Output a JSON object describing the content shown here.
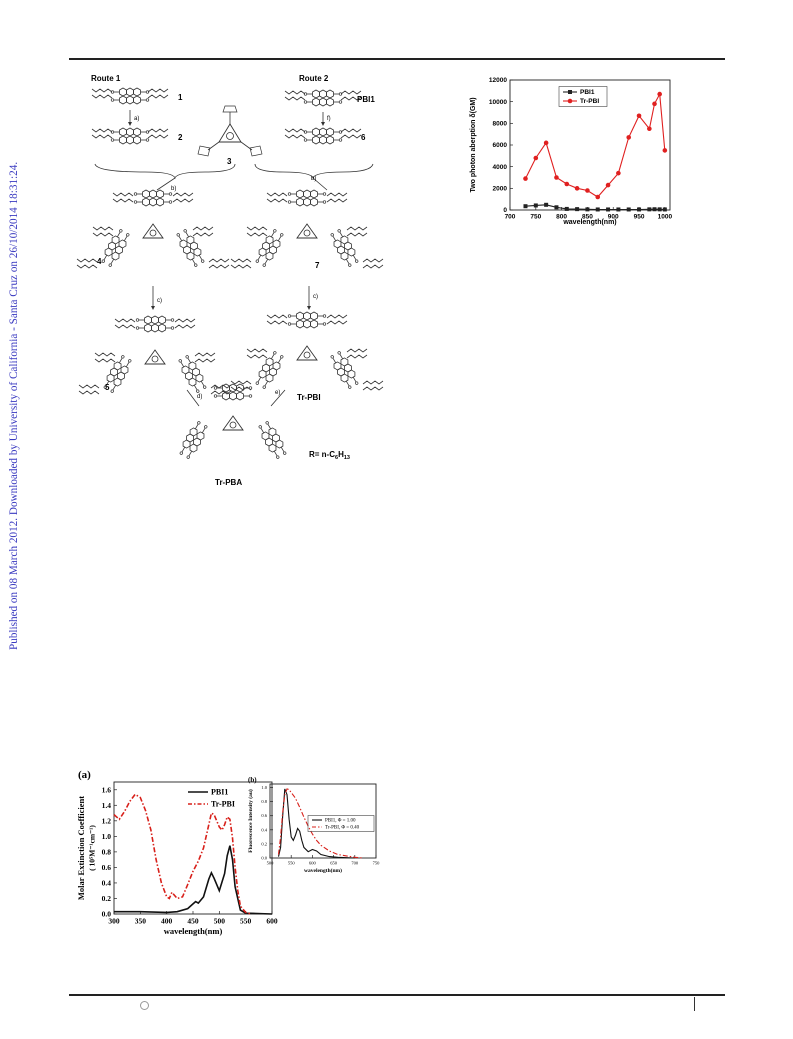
{
  "side_note": "Published on 08 March 2012. Downloaded by University of California - Santa Cruz on 26/10/2014 18:31:24.",
  "scheme": {
    "route1": "Route 1",
    "route2": "Route 2",
    "labels": [
      "1",
      "2",
      "3",
      "4",
      "5",
      "6",
      "7",
      "PBI1",
      "Tr-PBI",
      "Tr-PBA"
    ],
    "steps": [
      "a)",
      "b)",
      "b)",
      "c)",
      "c)",
      "d)",
      "e)",
      "f)"
    ],
    "r_group_prefix": "R= n-C",
    "r_group_sub1": "6",
    "r_group_mid": "H",
    "r_group_sub2": "13"
  },
  "chart_data": [
    {
      "type": "line",
      "xlabel": "wavelength(nm)",
      "ylabel": "Two photon aberption δ(GM)",
      "xlim": [
        700,
        1010
      ],
      "ylim": [
        0,
        12000
      ],
      "xticks": [
        "700",
        "750",
        "800",
        "850",
        "900",
        "950",
        "1000"
      ],
      "yticks": [
        "0",
        "2000",
        "4000",
        "6000",
        "8000",
        "10000",
        "12000"
      ],
      "legend_position": "top-center",
      "series": [
        {
          "name": "PBI1",
          "color": "#222222",
          "marker": "square",
          "x": [
            730,
            750,
            770,
            790,
            810,
            830,
            850,
            870,
            890,
            910,
            930,
            950,
            970,
            980,
            990,
            1000
          ],
          "y": [
            350,
            420,
            480,
            250,
            100,
            80,
            60,
            50,
            50,
            50,
            50,
            50,
            60,
            70,
            60,
            50
          ]
        },
        {
          "name": "Tr-PBI",
          "color": "#e02020",
          "marker": "circle",
          "x": [
            730,
            750,
            770,
            790,
            810,
            830,
            850,
            870,
            890,
            910,
            930,
            950,
            970,
            980,
            990,
            1000
          ],
          "y": [
            2900,
            4800,
            6200,
            3000,
            2400,
            2000,
            1800,
            1200,
            2300,
            3400,
            6700,
            8700,
            7500,
            9800,
            10700,
            5500
          ]
        }
      ]
    },
    {
      "type": "line",
      "panel_label": "(a)",
      "xlabel": "wavelength(nm)",
      "ylabel": "Molar Extinction Coefficient",
      "ylabel2": "( 10⁵M⁻¹cm⁻¹)",
      "xlim": [
        300,
        600
      ],
      "ylim": [
        0,
        1.7
      ],
      "xticks": [
        "300",
        "350",
        "400",
        "450",
        "500",
        "550",
        "600"
      ],
      "yticks": [
        "0.0",
        "0.2",
        "0.4",
        "0.6",
        "0.8",
        "1.0",
        "1.2",
        "1.4",
        "1.6"
      ],
      "legend_position": "top-right",
      "series": [
        {
          "name": "PBI1",
          "color": "#111111",
          "style": "solid",
          "x": [
            300,
            350,
            400,
            420,
            440,
            450,
            455,
            460,
            470,
            480,
            485,
            490,
            500,
            510,
            515,
            520,
            525,
            530,
            540,
            550,
            600
          ],
          "y": [
            0.03,
            0.03,
            0.02,
            0.03,
            0.07,
            0.13,
            0.16,
            0.14,
            0.22,
            0.45,
            0.53,
            0.46,
            0.3,
            0.52,
            0.75,
            0.88,
            0.7,
            0.35,
            0.05,
            0.01,
            0.0
          ]
        },
        {
          "name": "Tr-PBI",
          "color": "#d8201a",
          "style": "dashdot",
          "x": [
            300,
            310,
            320,
            330,
            340,
            350,
            360,
            370,
            380,
            390,
            400,
            405,
            410,
            420,
            430,
            440,
            450,
            460,
            470,
            480,
            485,
            490,
            495,
            500,
            505,
            510,
            515,
            520,
            525,
            530,
            535,
            540,
            550,
            560
          ],
          "y": [
            1.28,
            1.22,
            1.32,
            1.45,
            1.54,
            1.5,
            1.33,
            1.08,
            0.7,
            0.4,
            0.22,
            0.2,
            0.28,
            0.2,
            0.22,
            0.38,
            0.55,
            0.68,
            0.85,
            1.15,
            1.3,
            1.28,
            1.2,
            1.12,
            1.08,
            1.15,
            1.25,
            1.22,
            0.98,
            0.6,
            0.3,
            0.1,
            0.02,
            0.0
          ]
        }
      ]
    },
    {
      "type": "line",
      "panel_label": "(b)",
      "xlabel": "wavelength(nm)",
      "ylabel": "Fluorescence Intensity (au)",
      "xlim": [
        500,
        750
      ],
      "ylim": [
        0,
        1.05
      ],
      "xticks": [
        "500",
        "550",
        "600",
        "650",
        "700",
        "750"
      ],
      "yticks": [
        "0.0",
        "0.2",
        "0.4",
        "0.6",
        "0.8",
        "1.0"
      ],
      "legend_position": "middle-right",
      "series": [
        {
          "name": "PBI1, Φ = 1.00",
          "color": "#111111",
          "style": "solid",
          "x": [
            520,
            525,
            530,
            535,
            540,
            545,
            550,
            555,
            560,
            565,
            570,
            575,
            580,
            590,
            600,
            610,
            620,
            640,
            660,
            700
          ],
          "y": [
            0.02,
            0.15,
            0.6,
            0.98,
            0.9,
            0.55,
            0.3,
            0.25,
            0.32,
            0.42,
            0.38,
            0.25,
            0.15,
            0.09,
            0.12,
            0.1,
            0.05,
            0.02,
            0.01,
            0.0
          ]
        },
        {
          "name": "Tr-PBI, Φ = 0.40",
          "color": "#d8201a",
          "style": "dashdot",
          "x": [
            520,
            525,
            530,
            535,
            540,
            545,
            550,
            560,
            570,
            580,
            590,
            600,
            610,
            620,
            640,
            660,
            680,
            700,
            720
          ],
          "y": [
            0.05,
            0.3,
            0.65,
            0.9,
            0.98,
            0.97,
            0.93,
            0.85,
            0.72,
            0.58,
            0.45,
            0.34,
            0.25,
            0.18,
            0.1,
            0.05,
            0.03,
            0.01,
            0.0
          ]
        }
      ]
    }
  ]
}
